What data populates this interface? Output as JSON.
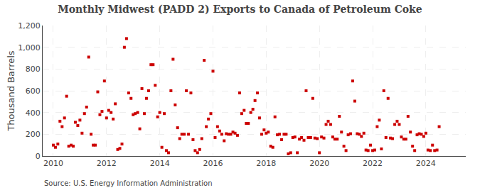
{
  "chart_data": {
    "type": "scatter",
    "title": "Monthly Midwest (PADD 2) Exports to Canada of Petroleum Coke",
    "ylabel": "Thousand Barrels",
    "annotations": [
      "Source: U.S. Energy Information Administration"
    ],
    "color": "#cc0000",
    "marker": "square",
    "grid": true,
    "xlim": [
      2009.6,
      2025.5
    ],
    "xticks": [
      2010,
      2012,
      2014,
      2016,
      2018,
      2020,
      2022,
      2024
    ],
    "ylim": [
      0,
      1200
    ],
    "yticks": [
      0,
      200,
      400,
      600,
      800,
      {
        "value": 1000,
        "label": "1,000"
      },
      {
        "value": 1200,
        "label": "1,200"
      }
    ],
    "x": [
      2010.0,
      2010.08,
      2010.17,
      2010.25,
      2010.33,
      2010.42,
      2010.5,
      2010.58,
      2010.67,
      2010.75,
      2010.83,
      2010.92,
      2011.0,
      2011.08,
      2011.17,
      2011.25,
      2011.33,
      2011.42,
      2011.5,
      2011.58,
      2011.67,
      2011.75,
      2011.83,
      2011.92,
      2012.0,
      2012.08,
      2012.17,
      2012.25,
      2012.33,
      2012.42,
      2012.5,
      2012.58,
      2012.67,
      2012.75,
      2012.83,
      2012.92,
      2013.0,
      2013.08,
      2013.17,
      2013.25,
      2013.33,
      2013.42,
      2013.5,
      2013.58,
      2013.67,
      2013.75,
      2013.83,
      2013.92,
      2014.0,
      2014.08,
      2014.17,
      2014.25,
      2014.33,
      2014.42,
      2014.5,
      2014.58,
      2014.67,
      2014.75,
      2014.83,
      2014.92,
      2015.0,
      2015.08,
      2015.17,
      2015.25,
      2015.33,
      2015.42,
      2015.5,
      2015.58,
      2015.67,
      2015.75,
      2015.83,
      2015.92,
      2016.0,
      2016.08,
      2016.17,
      2016.25,
      2016.33,
      2016.42,
      2016.5,
      2016.58,
      2016.67,
      2016.75,
      2016.83,
      2016.92,
      2017.0,
      2017.08,
      2017.17,
      2017.25,
      2017.33,
      2017.42,
      2017.5,
      2017.58,
      2017.67,
      2017.75,
      2017.83,
      2017.92,
      2018.0,
      2018.08,
      2018.17,
      2018.25,
      2018.33,
      2018.42,
      2018.5,
      2018.58,
      2018.67,
      2018.75,
      2018.83,
      2018.92,
      2019.0,
      2019.08,
      2019.17,
      2019.25,
      2019.33,
      2019.42,
      2019.5,
      2019.58,
      2019.67,
      2019.75,
      2019.83,
      2019.92,
      2020.0,
      2020.08,
      2020.17,
      2020.25,
      2020.33,
      2020.42,
      2020.5,
      2020.58,
      2020.67,
      2020.75,
      2020.83,
      2020.92,
      2021.0,
      2021.08,
      2021.17,
      2021.25,
      2021.33,
      2021.42,
      2021.5,
      2021.58,
      2021.67,
      2021.75,
      2021.83,
      2021.92,
      2022.0,
      2022.08,
      2022.17,
      2022.25,
      2022.33,
      2022.42,
      2022.5,
      2022.58,
      2022.67,
      2022.75,
      2022.83,
      2022.92,
      2023.0,
      2023.08,
      2023.17,
      2023.25,
      2023.33,
      2023.42,
      2023.5,
      2023.58,
      2023.67,
      2023.75,
      2023.83,
      2023.92,
      2024.0,
      2024.08,
      2024.17,
      2024.25,
      2024.33,
      2024.42,
      2024.5
    ],
    "values": [
      100,
      80,
      110,
      320,
      270,
      350,
      550,
      90,
      100,
      90,
      310,
      280,
      330,
      210,
      390,
      450,
      910,
      200,
      100,
      100,
      590,
      380,
      410,
      690,
      350,
      420,
      400,
      340,
      480,
      60,
      70,
      110,
      1000,
      1080,
      580,
      530,
      380,
      390,
      400,
      250,
      620,
      390,
      530,
      600,
      840,
      840,
      650,
      360,
      400,
      80,
      390,
      50,
      30,
      600,
      890,
      470,
      260,
      160,
      200,
      200,
      600,
      200,
      580,
      150,
      50,
      30,
      60,
      160,
      880,
      270,
      340,
      390,
      780,
      170,
      270,
      230,
      200,
      140,
      205,
      200,
      200,
      220,
      210,
      190,
      580,
      390,
      420,
      300,
      300,
      400,
      430,
      510,
      580,
      350,
      200,
      240,
      210,
      220,
      90,
      80,
      360,
      195,
      200,
      150,
      200,
      200,
      20,
      30,
      170,
      175,
      30,
      155,
      170,
      145,
      600,
      170,
      170,
      530,
      165,
      160,
      30,
      175,
      165,
      290,
      320,
      290,
      175,
      155,
      155,
      365,
      220,
      90,
      50,
      195,
      205,
      690,
      505,
      205,
      200,
      180,
      210,
      55,
      50,
      100,
      50,
      55,
      270,
      330,
      65,
      600,
      170,
      530,
      165,
      160,
      290,
      320,
      290,
      175,
      155,
      155,
      365,
      220,
      90,
      50,
      195,
      205,
      200,
      180,
      210,
      55,
      50,
      100,
      50,
      55,
      270
    ]
  }
}
